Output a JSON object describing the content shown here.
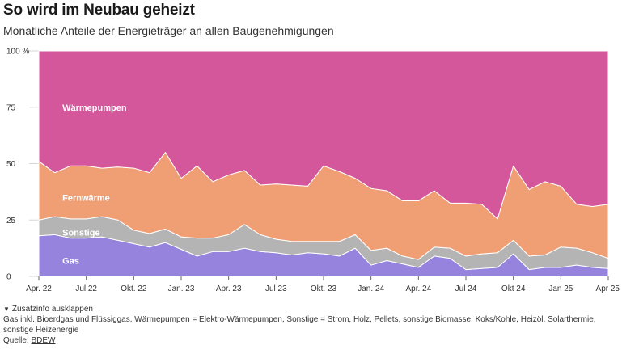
{
  "header": {
    "title": "So wird im Neubau geheizt",
    "subtitle": "Monatliche Anteile der Energieträger an allen Baugenehmigungen"
  },
  "chart_data": {
    "type": "area",
    "stacked": true,
    "ylim": [
      0,
      100
    ],
    "yticks": [
      0,
      25,
      50,
      75,
      100
    ],
    "ytick_labels": [
      "0",
      "25",
      "50",
      "75",
      "100 %"
    ],
    "x": [
      "Apr. 22",
      "Mai 22",
      "Jun. 22",
      "Jul 22",
      "Aug. 22",
      "Sep. 22",
      "Okt. 22",
      "Nov. 22",
      "Dez. 22",
      "Jan. 23",
      "Feb. 23",
      "Mär. 23",
      "Apr. 23",
      "Mai 23",
      "Jun. 23",
      "Jul 23",
      "Aug. 23",
      "Sep. 23",
      "Okt. 23",
      "Nov. 23",
      "Dez. 23",
      "Jan. 24",
      "Feb. 24",
      "Mär. 24",
      "Apr. 24",
      "Mai 24",
      "Jun. 24",
      "Jul 24",
      "Aug. 24",
      "Sep. 24",
      "Okt 24",
      "Nov. 24",
      "Dez. 24",
      "Jan 25",
      "Feb. 25",
      "Mär. 25",
      "Apr 25"
    ],
    "xtick_labels": [
      "Apr. 22",
      "Jul 22",
      "Okt. 22",
      "Jan. 23",
      "Apr. 23",
      "Jul 23",
      "Okt. 23",
      "Jan. 24",
      "Apr. 24",
      "Jul 24",
      "Okt 24",
      "Jan 25",
      "Apr 25"
    ],
    "xtick_every": 3,
    "series": [
      {
        "name": "Gas",
        "color": "#9583de",
        "values": [
          18,
          18.5,
          17,
          17,
          17.5,
          16,
          14.5,
          13,
          15,
          12,
          9,
          11,
          11,
          12.5,
          11,
          10.5,
          9.5,
          10.5,
          10,
          9,
          12.5,
          5,
          7,
          5.5,
          4,
          9,
          8,
          3,
          3.5,
          4,
          10,
          3,
          4,
          4,
          5,
          4,
          3.5
        ]
      },
      {
        "name": "Sonstige",
        "color": "#b4b4b4",
        "values": [
          7,
          8,
          8.5,
          8.5,
          9,
          9,
          6,
          6,
          6,
          5.5,
          8,
          6,
          7.5,
          10.5,
          7.5,
          6,
          6,
          5,
          5.5,
          6.5,
          6,
          6.5,
          5.5,
          3.5,
          3.5,
          4,
          4.5,
          6,
          6.5,
          6.5,
          6,
          6,
          5.5,
          9,
          7.5,
          6.5,
          4.5
        ]
      },
      {
        "name": "Fernwärme",
        "color": "#f09e74",
        "values": [
          26,
          19.5,
          23.5,
          23.5,
          21.5,
          23.5,
          27.5,
          27,
          34,
          26,
          32,
          25,
          26.5,
          24,
          22,
          24.5,
          25,
          24.5,
          33.5,
          31,
          25,
          27.5,
          25.5,
          24.5,
          26,
          25,
          20,
          23.5,
          22,
          15,
          33,
          29.5,
          32.5,
          27,
          19.5,
          20.5,
          24
        ]
      },
      {
        "name": "Wärmepumpen",
        "color": "#d4569b",
        "values": [
          49,
          54,
          51,
          51,
          52,
          51.5,
          52,
          54,
          45,
          56.5,
          51,
          58,
          55,
          53,
          59.5,
          59,
          59.5,
          60,
          51,
          53.5,
          56.5,
          61,
          62,
          66.5,
          66.5,
          62,
          67.5,
          67.5,
          68,
          74.5,
          51,
          61.5,
          58,
          60,
          68,
          69,
          68
        ]
      }
    ],
    "labels": [
      {
        "series": "Wärmepumpen",
        "text": "Wärmepumpen",
        "anchor_index": 2,
        "value": 75
      },
      {
        "series": "Fernwärme",
        "text": "Fernwärme",
        "anchor_index": 2,
        "value": 35
      },
      {
        "series": "Sonstige",
        "text": "Sonstige",
        "anchor_index": 2,
        "value": 19.5
      },
      {
        "series": "Gas",
        "text": "Gas",
        "anchor_index": 2,
        "value": 7
      }
    ]
  },
  "footer": {
    "toggle_label": "Zusatzinfo ausklappen",
    "note": "Gas inkl. Bioerdgas und Flüssiggas, Wärmepumpen = Elektro-Wärmepumpen, Sonstige = Strom, Holz, Pellets, sonstige Biomasse, Koks/Kohle, Heizöl, Solarthermie, sonstige Heizenergie",
    "source_prefix": "Quelle: ",
    "source_link": "BDEW"
  }
}
